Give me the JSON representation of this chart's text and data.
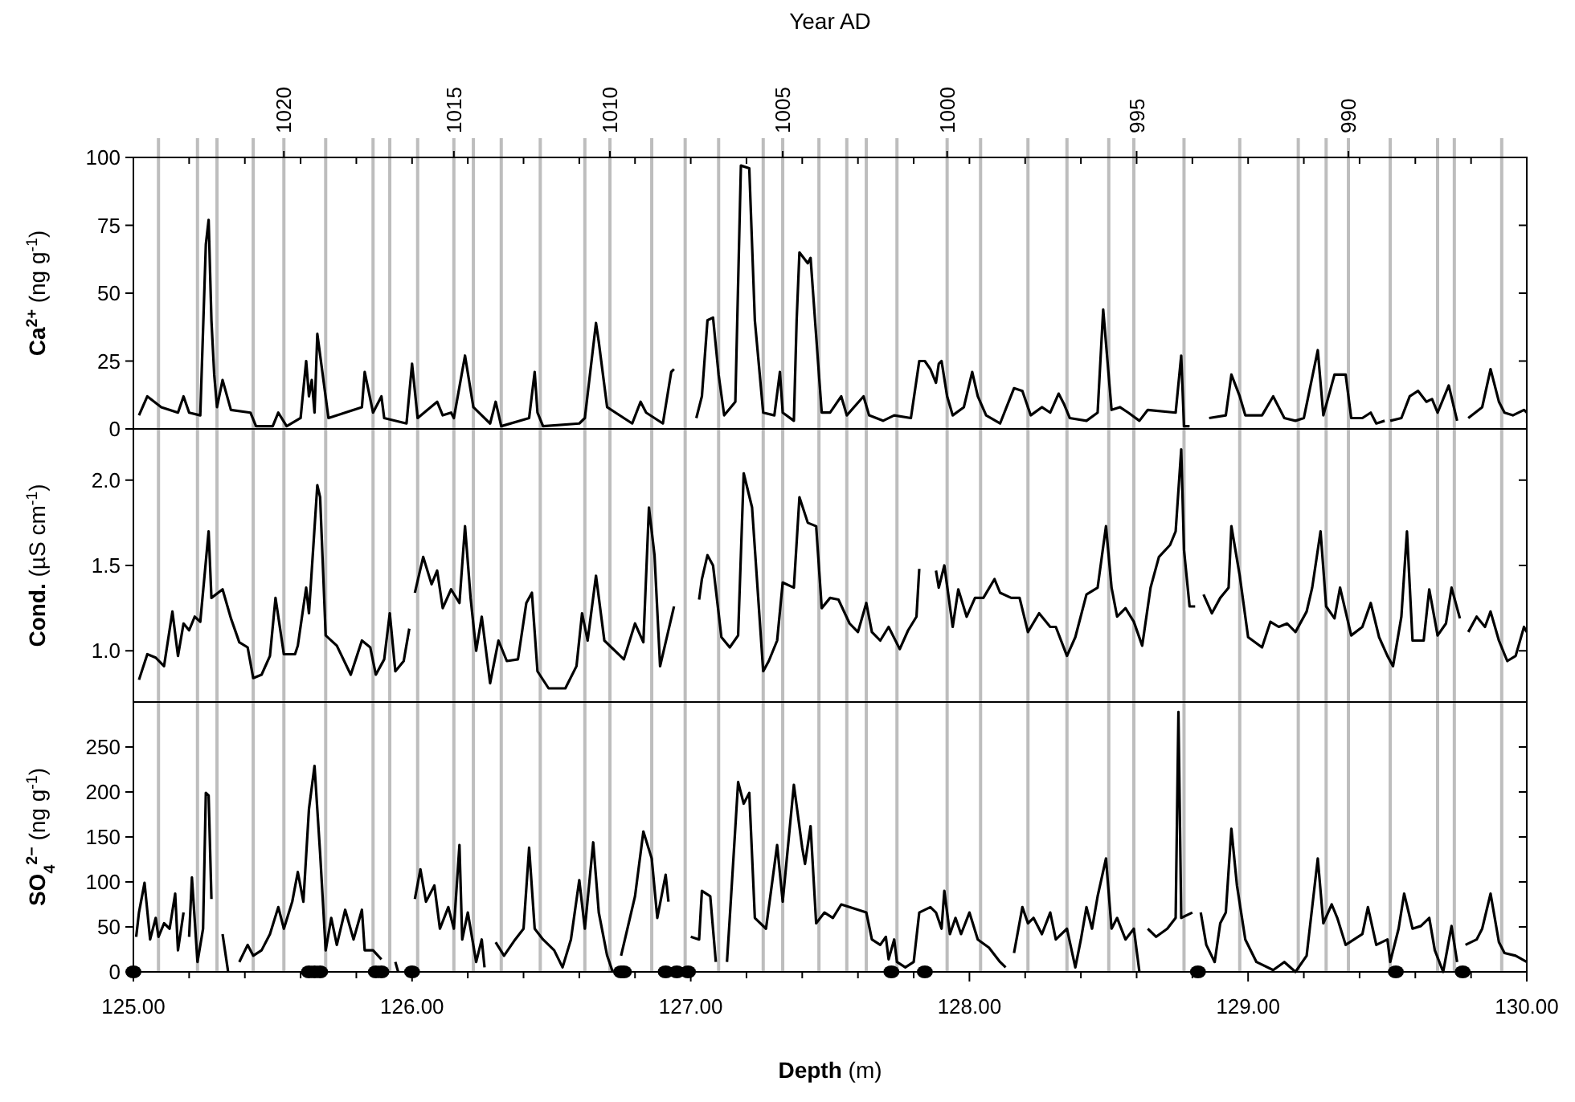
{
  "chart_data": [
    {
      "type": "line",
      "ylabel": "Ca$^{2+}$ (ng g$^{-1}$)",
      "x2label": "Year AD",
      "xlim": [
        125,
        130
      ],
      "annotations": [
        {
          "text": "1020",
          "x": 125.54
        },
        {
          "text": "1015",
          "x": 126.15
        },
        {
          "text": "1010",
          "x": 126.71
        },
        {
          "text": "1005",
          "x": 127.33
        },
        {
          "text": "1000",
          "x": 127.92
        },
        {
          "text": "995",
          "x": 128.6
        },
        {
          "text": "990",
          "x": 129.36
        }
      ],
      "ylim": [
        0,
        100
      ],
      "yticks": [
        0,
        25,
        50,
        75,
        100
      ],
      "ref_lines": [
        {
          "axis": "x",
          "value": 125.09
        },
        {
          "axis": "x",
          "value": 125.23
        },
        {
          "axis": "x",
          "value": 125.3
        },
        {
          "axis": "x",
          "value": 125.43
        },
        {
          "axis": "x",
          "value": 125.54
        },
        {
          "axis": "x",
          "value": 125.69
        },
        {
          "axis": "x",
          "value": 125.86
        },
        {
          "axis": "x",
          "value": 125.92
        },
        {
          "axis": "x",
          "value": 126.02
        },
        {
          "axis": "x",
          "value": 126.15
        },
        {
          "axis": "x",
          "value": 126.22
        },
        {
          "axis": "x",
          "value": 126.32
        },
        {
          "axis": "x",
          "value": 126.46
        },
        {
          "axis": "x",
          "value": 126.62
        },
        {
          "axis": "x",
          "value": 126.71
        },
        {
          "axis": "x",
          "value": 126.86
        },
        {
          "axis": "x",
          "value": 126.98
        },
        {
          "axis": "x",
          "value": 127.1
        },
        {
          "axis": "x",
          "value": 127.26
        },
        {
          "axis": "x",
          "value": 127.33
        },
        {
          "axis": "x",
          "value": 127.46
        },
        {
          "axis": "x",
          "value": 127.56
        },
        {
          "axis": "x",
          "value": 127.63
        },
        {
          "axis": "x",
          "value": 127.74
        },
        {
          "axis": "x",
          "value": 127.92
        },
        {
          "axis": "x",
          "value": 128.04
        },
        {
          "axis": "x",
          "value": 128.21
        },
        {
          "axis": "x",
          "value": 128.35
        },
        {
          "axis": "x",
          "value": 128.5
        },
        {
          "axis": "x",
          "value": 128.59
        },
        {
          "axis": "x",
          "value": 128.77
        },
        {
          "axis": "x",
          "value": 128.97
        },
        {
          "axis": "x",
          "value": 129.18
        },
        {
          "axis": "x",
          "value": 129.28
        },
        {
          "axis": "x",
          "value": 129.36
        },
        {
          "axis": "x",
          "value": 129.51
        },
        {
          "axis": "x",
          "value": 129.68
        },
        {
          "axis": "x",
          "value": 129.74
        },
        {
          "axis": "x",
          "value": 129.91
        }
      ],
      "series": [
        {
          "color": "#000000",
          "x": [
            125.02,
            125.05,
            125.1,
            125.16,
            125.18,
            125.2,
            125.24,
            125.26,
            125.27,
            125.28,
            125.29,
            125.3,
            125.32,
            125.35,
            125.42,
            125.44,
            125.5,
            125.52,
            125.55,
            125.6,
            125.62,
            125.63,
            125.64,
            125.65,
            125.66,
            125.7,
            125.82,
            125.83,
            125.86,
            125.89,
            125.9,
            125.98,
            126.0,
            126.02,
            126.09,
            126.11,
            126.14,
            126.15,
            126.19,
            126.22,
            126.28,
            126.3,
            126.32,
            126.42,
            126.44,
            126.45,
            126.47,
            126.6,
            126.62,
            126.66,
            126.67,
            126.7,
            126.79,
            126.82,
            126.84,
            126.9,
            126.93,
            126.94,
            126.98,
            127.02,
            127.04,
            127.06,
            127.08,
            127.1,
            127.12,
            127.16,
            127.18,
            127.21,
            127.23,
            127.26,
            127.3,
            127.32,
            127.33,
            127.37,
            127.38,
            127.39,
            127.42,
            127.43,
            127.46,
            127.47,
            127.5,
            127.54,
            127.56,
            127.62,
            127.64,
            127.69,
            127.73,
            127.79,
            127.82,
            127.84,
            127.86,
            127.88,
            127.89,
            127.9,
            127.92,
            127.94,
            127.98,
            128.01,
            128.03,
            128.06,
            128.11,
            128.16,
            128.19,
            128.22,
            128.26,
            128.29,
            128.32,
            128.34,
            128.36,
            128.42,
            128.46,
            128.48,
            128.51,
            128.54,
            128.57,
            128.61,
            128.64,
            128.74,
            128.76,
            128.77,
            128.79,
            128.82,
            128.86,
            128.92,
            128.94,
            128.97,
            128.99,
            129.05,
            129.09,
            129.13,
            129.17,
            129.2,
            129.25,
            129.27,
            129.31,
            129.35,
            129.37,
            129.41,
            129.44,
            129.46,
            129.49,
            129.5,
            129.51,
            129.55,
            129.58,
            129.61,
            129.64,
            129.66,
            129.68,
            129.72,
            129.75,
            129.77,
            129.79,
            129.84,
            129.87,
            129.9,
            129.92,
            129.95,
            129.99,
            130.0
          ],
          "values": [
            5,
            12,
            8,
            6,
            12,
            6,
            5,
            68,
            77,
            40,
            20,
            8,
            18,
            7,
            6,
            1,
            1,
            6,
            1,
            4,
            25,
            12,
            18,
            6,
            35,
            4,
            8,
            21,
            6,
            12,
            4,
            2,
            24,
            4,
            10,
            5,
            6,
            4,
            27,
            8,
            2,
            10,
            1,
            4,
            21,
            6,
            1,
            2,
            4,
            39,
            32,
            8,
            2,
            10,
            6,
            2,
            21,
            22,
            null,
            4,
            12,
            40,
            41,
            20,
            5,
            10,
            97,
            96,
            40,
            6,
            5,
            21,
            6,
            3,
            40,
            65,
            61,
            63,
            20,
            6,
            6,
            12,
            5,
            12,
            5,
            3,
            5,
            4,
            25,
            25,
            22,
            17,
            24,
            25,
            12,
            5,
            8,
            21,
            12,
            5,
            2,
            15,
            14,
            5,
            8,
            6,
            13,
            9,
            4,
            3,
            6,
            44,
            7,
            8,
            6,
            3,
            7,
            6,
            27,
            1,
            1,
            null,
            4,
            5,
            20,
            12,
            5,
            5,
            12,
            4,
            3,
            4,
            29,
            5,
            20,
            20,
            4,
            4,
            6,
            2,
            3,
            null,
            3,
            4,
            12,
            14,
            10,
            11,
            6,
            16,
            3,
            null,
            4,
            8,
            22,
            10,
            6,
            5,
            7,
            6
          ]
        }
      ]
    },
    {
      "type": "line",
      "ylabel": "Cond. (µS cm$^{-1}$)",
      "xlim": [
        125,
        130
      ],
      "ylim": [
        0.7,
        2.3
      ],
      "yticks": [
        {
          "value": 1,
          "label": "1.0"
        },
        {
          "value": 1.5,
          "label": "1.5"
        },
        {
          "value": 2,
          "label": "2.0"
        }
      ],
      "ref_lines": [
        {
          "axis": "x",
          "value": 125.09
        },
        {
          "axis": "x",
          "value": 125.23
        },
        {
          "axis": "x",
          "value": 125.3
        },
        {
          "axis": "x",
          "value": 125.43
        },
        {
          "axis": "x",
          "value": 125.54
        },
        {
          "axis": "x",
          "value": 125.69
        },
        {
          "axis": "x",
          "value": 125.86
        },
        {
          "axis": "x",
          "value": 125.92
        },
        {
          "axis": "x",
          "value": 126.02
        },
        {
          "axis": "x",
          "value": 126.15
        },
        {
          "axis": "x",
          "value": 126.22
        },
        {
          "axis": "x",
          "value": 126.32
        },
        {
          "axis": "x",
          "value": 126.46
        },
        {
          "axis": "x",
          "value": 126.62
        },
        {
          "axis": "x",
          "value": 126.71
        },
        {
          "axis": "x",
          "value": 126.86
        },
        {
          "axis": "x",
          "value": 126.98
        },
        {
          "axis": "x",
          "value": 127.1
        },
        {
          "axis": "x",
          "value": 127.26
        },
        {
          "axis": "x",
          "value": 127.33
        },
        {
          "axis": "x",
          "value": 127.46
        },
        {
          "axis": "x",
          "value": 127.56
        },
        {
          "axis": "x",
          "value": 127.63
        },
        {
          "axis": "x",
          "value": 127.74
        },
        {
          "axis": "x",
          "value": 127.92
        },
        {
          "axis": "x",
          "value": 128.04
        },
        {
          "axis": "x",
          "value": 128.21
        },
        {
          "axis": "x",
          "value": 128.35
        },
        {
          "axis": "x",
          "value": 128.5
        },
        {
          "axis": "x",
          "value": 128.59
        },
        {
          "axis": "x",
          "value": 128.77
        },
        {
          "axis": "x",
          "value": 128.97
        },
        {
          "axis": "x",
          "value": 129.18
        },
        {
          "axis": "x",
          "value": 129.28
        },
        {
          "axis": "x",
          "value": 129.36
        },
        {
          "axis": "x",
          "value": 129.51
        },
        {
          "axis": "x",
          "value": 129.68
        },
        {
          "axis": "x",
          "value": 129.74
        },
        {
          "axis": "x",
          "value": 129.91
        }
      ],
      "series": [
        {
          "color": "#000000",
          "x": [
            125.02,
            125.05,
            125.08,
            125.11,
            125.14,
            125.16,
            125.18,
            125.2,
            125.22,
            125.24,
            125.27,
            125.28,
            125.32,
            125.35,
            125.38,
            125.41,
            125.43,
            125.46,
            125.49,
            125.51,
            125.54,
            125.58,
            125.59,
            125.62,
            125.63,
            125.64,
            125.66,
            125.67,
            125.69,
            125.73,
            125.78,
            125.82,
            125.85,
            125.87,
            125.9,
            125.92,
            125.94,
            125.97,
            125.99,
            126.0,
            126.01,
            126.04,
            126.07,
            126.09,
            126.11,
            126.14,
            126.17,
            126.19,
            126.21,
            126.23,
            126.25,
            126.28,
            126.31,
            126.34,
            126.38,
            126.41,
            126.43,
            126.45,
            126.49,
            126.55,
            126.59,
            126.61,
            126.63,
            126.66,
            126.69,
            126.76,
            126.8,
            126.83,
            126.85,
            126.87,
            126.89,
            126.92,
            126.94,
            126.98,
            127.03,
            127.04,
            127.06,
            127.08,
            127.11,
            127.14,
            127.17,
            127.19,
            127.22,
            127.26,
            127.28,
            127.31,
            127.33,
            127.37,
            127.39,
            127.42,
            127.45,
            127.47,
            127.5,
            127.53,
            127.57,
            127.6,
            127.63,
            127.65,
            127.68,
            127.71,
            127.75,
            127.78,
            127.81,
            127.82,
            127.85,
            127.88,
            127.89,
            127.91,
            127.94,
            127.96,
            127.99,
            128.02,
            128.05,
            128.09,
            128.11,
            128.15,
            128.18,
            128.21,
            128.25,
            128.29,
            128.31,
            128.35,
            128.38,
            128.42,
            128.46,
            128.49,
            128.51,
            128.53,
            128.56,
            128.59,
            128.62,
            128.65,
            128.68,
            128.72,
            128.74,
            128.76,
            128.77,
            128.79,
            128.81,
            128.82,
            128.84,
            128.87,
            128.9,
            128.93,
            128.94,
            128.97,
            129.0,
            129.05,
            129.08,
            129.11,
            129.14,
            129.17,
            129.21,
            129.23,
            129.26,
            129.28,
            129.31,
            129.33,
            129.37,
            129.41,
            129.44,
            129.47,
            129.5,
            129.52,
            129.55,
            129.57,
            129.59,
            129.63,
            129.65,
            129.68,
            129.71,
            129.73,
            129.76,
            129.78,
            129.79,
            129.82,
            129.85,
            129.87,
            129.9,
            129.93,
            129.96,
            129.99,
            130.0
          ],
          "values": [
            0.83,
            0.98,
            0.96,
            0.91,
            1.23,
            0.97,
            1.16,
            1.12,
            1.2,
            1.17,
            1.7,
            1.31,
            1.36,
            1.19,
            1.05,
            1.02,
            0.84,
            0.86,
            0.97,
            1.31,
            0.98,
            0.98,
            1.03,
            1.37,
            1.22,
            1.47,
            1.97,
            1.9,
            1.09,
            1.03,
            0.86,
            1.06,
            1.02,
            0.86,
            0.95,
            1.22,
            0.88,
            0.94,
            1.13,
            null,
            1.34,
            1.55,
            1.39,
            1.47,
            1.25,
            1.36,
            1.28,
            1.73,
            1.31,
            1.0,
            1.2,
            0.81,
            1.06,
            0.94,
            0.95,
            1.28,
            1.34,
            0.88,
            0.78,
            0.78,
            0.91,
            1.22,
            1.06,
            1.44,
            1.06,
            0.95,
            1.16,
            1.05,
            1.84,
            1.56,
            0.91,
            1.12,
            1.26,
            null,
            1.3,
            1.42,
            1.56,
            1.5,
            1.08,
            1.02,
            1.09,
            2.04,
            1.84,
            0.88,
            0.94,
            1.06,
            1.4,
            1.37,
            1.9,
            1.75,
            1.73,
            1.25,
            1.31,
            1.3,
            1.16,
            1.11,
            1.28,
            1.11,
            1.06,
            1.14,
            1.01,
            1.12,
            1.2,
            1.48,
            null,
            1.47,
            1.37,
            1.5,
            1.14,
            1.36,
            1.2,
            1.31,
            1.31,
            1.42,
            1.34,
            1.31,
            1.31,
            1.11,
            1.22,
            1.14,
            1.14,
            0.97,
            1.08,
            1.33,
            1.37,
            1.73,
            1.37,
            1.2,
            1.25,
            1.17,
            1.03,
            1.37,
            1.55,
            1.62,
            1.7,
            2.18,
            1.59,
            1.26,
            1.26,
            null,
            1.33,
            1.22,
            1.31,
            1.37,
            1.73,
            1.44,
            1.08,
            1.02,
            1.17,
            1.14,
            1.16,
            1.11,
            1.23,
            1.37,
            1.7,
            1.26,
            1.19,
            1.37,
            1.09,
            1.14,
            1.28,
            1.08,
            0.97,
            0.91,
            1.2,
            1.7,
            1.06,
            1.06,
            1.36,
            1.09,
            1.16,
            1.37,
            1.19,
            null,
            1.11,
            1.2,
            1.14,
            1.23,
            1.06,
            0.94,
            0.97,
            1.14,
            1.11
          ]
        }
      ]
    },
    {
      "type": "line",
      "ylabel": "SO$_{4}$$^{2−}$ (ng g$^{-1}$)",
      "xlabel": "Depth (m)",
      "xlim": [
        125,
        130
      ],
      "xticks": [
        {
          "value": 125,
          "label": "125.00"
        },
        {
          "value": 126,
          "label": "126.00"
        },
        {
          "value": 127,
          "label": "127.00"
        },
        {
          "value": 128,
          "label": "128.00"
        },
        {
          "value": 129,
          "label": "129.00"
        },
        {
          "value": 130,
          "label": "130.00"
        },
        {
          "value": 125.2,
          "label": null
        },
        {
          "value": 125.4,
          "label": null
        },
        {
          "value": 125.6,
          "label": null
        },
        {
          "value": 125.8,
          "label": null
        },
        {
          "value": 126.2,
          "label": null
        },
        {
          "value": 126.4,
          "label": null
        },
        {
          "value": 126.6,
          "label": null
        },
        {
          "value": 126.8,
          "label": null
        },
        {
          "value": 127.2,
          "label": null
        },
        {
          "value": 127.4,
          "label": null
        },
        {
          "value": 127.6,
          "label": null
        },
        {
          "value": 127.8,
          "label": null
        },
        {
          "value": 128.2,
          "label": null
        },
        {
          "value": 128.4,
          "label": null
        },
        {
          "value": 128.6,
          "label": null
        },
        {
          "value": 128.8,
          "label": null
        },
        {
          "value": 129.2,
          "label": null
        },
        {
          "value": 129.4,
          "label": null
        },
        {
          "value": 129.6,
          "label": null
        },
        {
          "value": 129.8,
          "label": null
        }
      ],
      "ylim": [
        0,
        300
      ],
      "yticks": [
        0,
        50,
        100,
        150,
        200,
        250
      ],
      "ref_lines": [
        {
          "axis": "x",
          "value": 125.09
        },
        {
          "axis": "x",
          "value": 125.23
        },
        {
          "axis": "x",
          "value": 125.3
        },
        {
          "axis": "x",
          "value": 125.43
        },
        {
          "axis": "x",
          "value": 125.54
        },
        {
          "axis": "x",
          "value": 125.69
        },
        {
          "axis": "x",
          "value": 125.86
        },
        {
          "axis": "x",
          "value": 125.92
        },
        {
          "axis": "x",
          "value": 126.02
        },
        {
          "axis": "x",
          "value": 126.15
        },
        {
          "axis": "x",
          "value": 126.22
        },
        {
          "axis": "x",
          "value": 126.32
        },
        {
          "axis": "x",
          "value": 126.46
        },
        {
          "axis": "x",
          "value": 126.62
        },
        {
          "axis": "x",
          "value": 126.71
        },
        {
          "axis": "x",
          "value": 126.86
        },
        {
          "axis": "x",
          "value": 126.98
        },
        {
          "axis": "x",
          "value": 127.1
        },
        {
          "axis": "x",
          "value": 127.26
        },
        {
          "axis": "x",
          "value": 127.33
        },
        {
          "axis": "x",
          "value": 127.46
        },
        {
          "axis": "x",
          "value": 127.56
        },
        {
          "axis": "x",
          "value": 127.63
        },
        {
          "axis": "x",
          "value": 127.74
        },
        {
          "axis": "x",
          "value": 127.92
        },
        {
          "axis": "x",
          "value": 128.04
        },
        {
          "axis": "x",
          "value": 128.21
        },
        {
          "axis": "x",
          "value": 128.35
        },
        {
          "axis": "x",
          "value": 128.5
        },
        {
          "axis": "x",
          "value": 128.59
        },
        {
          "axis": "x",
          "value": 128.77
        },
        {
          "axis": "x",
          "value": 128.97
        },
        {
          "axis": "x",
          "value": 129.18
        },
        {
          "axis": "x",
          "value": 129.28
        },
        {
          "axis": "x",
          "value": 129.36
        },
        {
          "axis": "x",
          "value": 129.51
        },
        {
          "axis": "x",
          "value": 129.68
        },
        {
          "axis": "x",
          "value": 129.74
        },
        {
          "axis": "x",
          "value": 129.91
        }
      ],
      "series": [
        {
          "color": "#000000",
          "x": [
            125.01,
            125.02,
            125.04,
            125.06,
            125.08,
            125.09,
            125.11,
            125.13,
            125.15,
            125.16,
            125.18,
            125.19,
            125.2,
            125.21,
            125.23,
            125.25,
            125.26,
            125.27,
            125.28,
            125.3,
            125.32,
            125.34,
            125.36,
            125.38,
            125.41,
            125.43,
            125.46,
            125.49,
            125.52,
            125.54,
            125.57,
            125.59,
            125.61,
            125.63,
            125.65,
            125.67,
            125.69,
            125.71,
            125.73,
            125.76,
            125.79,
            125.82,
            125.83,
            125.86,
            125.89,
            125.91,
            125.94,
            125.95,
            125.98,
            126.01,
            126.03,
            126.05,
            126.08,
            126.1,
            126.13,
            126.15,
            126.17,
            126.18,
            126.2,
            126.23,
            126.25,
            126.26,
            126.28,
            126.3,
            126.33,
            126.37,
            126.4,
            126.42,
            126.44,
            126.47,
            126.51,
            126.54,
            126.57,
            126.6,
            126.62,
            126.65,
            126.67,
            126.7,
            126.72,
            126.73,
            126.75,
            126.8,
            126.83,
            126.86,
            126.88,
            126.91,
            126.92,
            126.96,
            127.0,
            127.03,
            127.04,
            127.07,
            127.09,
            127.11,
            127.13,
            127.14,
            127.17,
            127.19,
            127.21,
            127.23,
            127.27,
            127.31,
            127.33,
            127.37,
            127.4,
            127.41,
            127.43,
            127.45,
            127.48,
            127.51,
            127.54,
            127.63,
            127.65,
            127.68,
            127.7,
            127.71,
            127.73,
            127.74,
            127.77,
            127.8,
            127.82,
            127.86,
            127.88,
            127.9,
            127.91,
            127.93,
            127.95,
            127.97,
            128.0,
            128.03,
            128.07,
            128.11,
            128.13,
            128.15,
            128.16,
            128.19,
            128.21,
            128.23,
            128.26,
            128.29,
            128.31,
            128.35,
            128.38,
            128.4,
            128.42,
            128.44,
            128.46,
            128.49,
            128.51,
            128.53,
            128.56,
            128.59,
            128.61,
            128.62,
            128.64,
            128.67,
            128.71,
            128.74,
            128.75,
            128.76,
            128.8,
            128.81,
            128.83,
            128.85,
            128.88,
            128.9,
            128.92,
            128.94,
            128.96,
            128.99,
            129.03,
            129.09,
            129.13,
            129.17,
            129.21,
            129.25,
            129.27,
            129.3,
            129.32,
            129.35,
            129.38,
            129.41,
            129.43,
            129.46,
            129.5,
            129.51,
            129.54,
            129.56,
            129.59,
            129.62,
            129.65,
            129.67,
            129.7,
            129.73,
            129.75,
            129.77,
            129.78,
            129.82,
            129.84,
            129.87,
            129.9,
            129.92,
            129.96,
            130.0
          ],
          "values": [
            39,
            66,
            99,
            36,
            60,
            39,
            54,
            48,
            87,
            24,
            66,
            null,
            39,
            105,
            11,
            48,
            199,
            196,
            81,
            null,
            42,
            0,
            null,
            11,
            30,
            18,
            24,
            42,
            72,
            48,
            78,
            111,
            78,
            181,
            229,
            132,
            24,
            60,
            30,
            69,
            36,
            69,
            24,
            24,
            14,
            null,
            11,
            0,
            null,
            81,
            114,
            78,
            96,
            48,
            72,
            48,
            141,
            36,
            66,
            11,
            36,
            5,
            null,
            33,
            18,
            36,
            48,
            138,
            48,
            36,
            24,
            5,
            36,
            102,
            48,
            144,
            66,
            18,
            0,
            null,
            18,
            84,
            156,
            126,
            60,
            108,
            78,
            null,
            39,
            36,
            90,
            84,
            11,
            null,
            11,
            60,
            211,
            187,
            199,
            60,
            48,
            141,
            78,
            208,
            138,
            120,
            162,
            54,
            66,
            60,
            75,
            66,
            36,
            30,
            39,
            14,
            36,
            11,
            5,
            11,
            66,
            72,
            66,
            48,
            90,
            42,
            60,
            42,
            66,
            36,
            27,
            11,
            5,
            null,
            21,
            72,
            54,
            60,
            42,
            66,
            36,
            48,
            5,
            36,
            72,
            48,
            84,
            126,
            48,
            60,
            36,
            48,
            0,
            null,
            48,
            39,
            48,
            60,
            289,
            60,
            66,
            null,
            66,
            30,
            11,
            54,
            66,
            159,
            96,
            36,
            11,
            2,
            11,
            0,
            18,
            126,
            54,
            75,
            60,
            30,
            36,
            42,
            72,
            30,
            36,
            11,
            48,
            87,
            48,
            51,
            60,
            24,
            0,
            51,
            11,
            null,
            30,
            36,
            48,
            87,
            33,
            21,
            18,
            11
          ]
        },
        {
          "type": "scatter",
          "marker": "circle",
          "color": "#000000",
          "x": [
            125.0,
            125.63,
            125.65,
            125.67,
            125.87,
            125.89,
            126.0,
            126.75,
            126.76,
            126.91,
            126.95,
            126.99,
            127.72,
            127.84,
            128.82,
            129.53,
            129.77
          ],
          "values": [
            0,
            0,
            0,
            0,
            0,
            0,
            0,
            0,
            0,
            0,
            0,
            0,
            0,
            0,
            0,
            0,
            0
          ]
        }
      ]
    }
  ]
}
